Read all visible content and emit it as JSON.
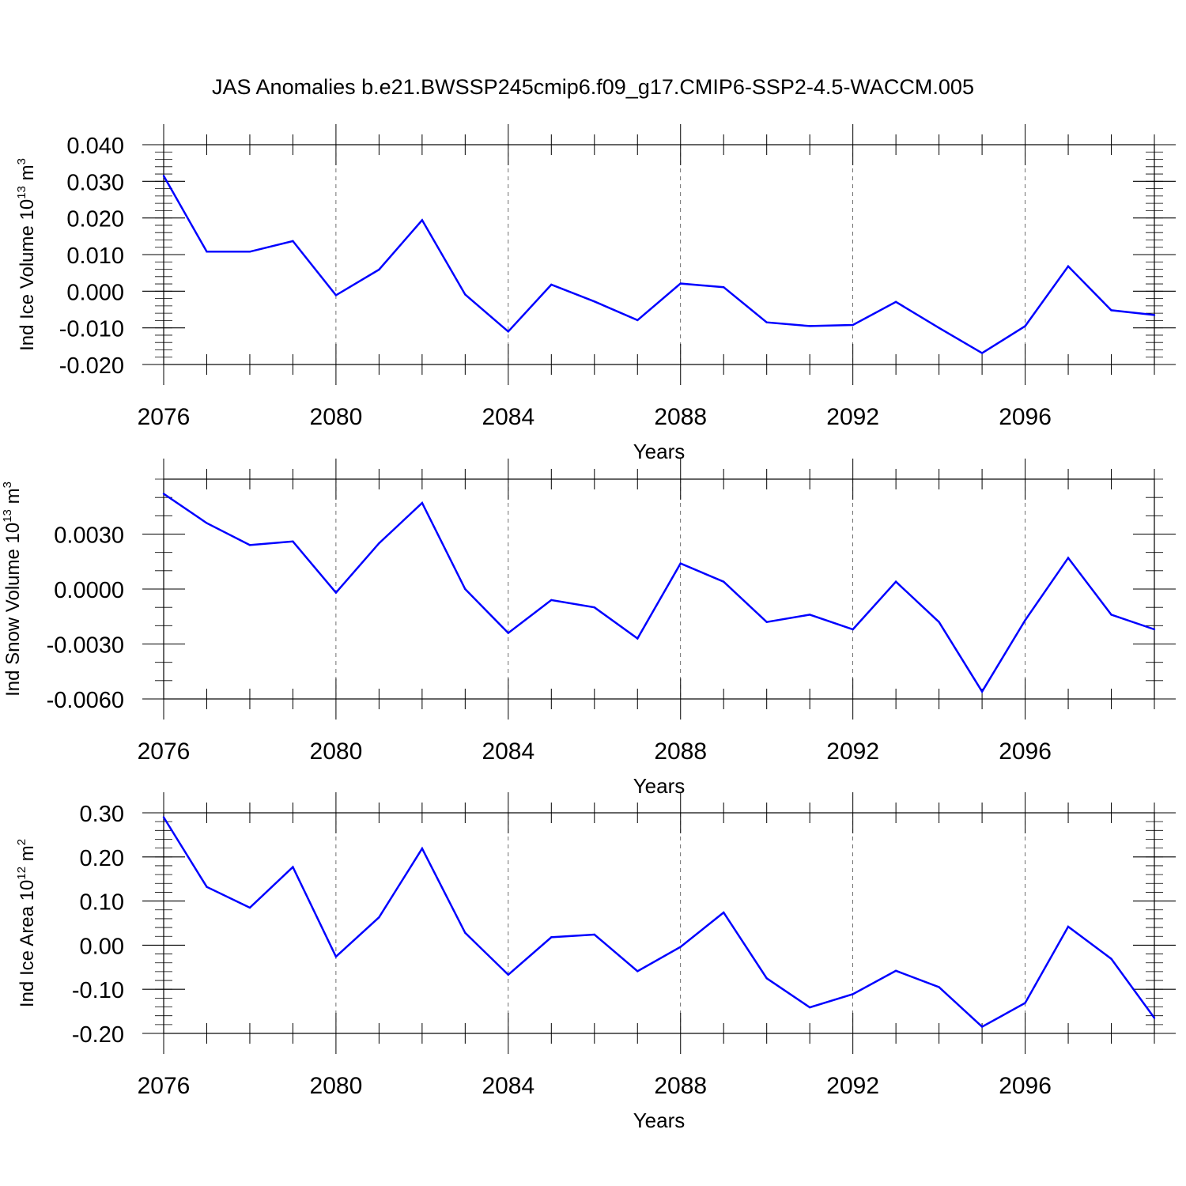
{
  "title": "JAS Anomalies b.e21.BWSSP245cmip6.f09_g17.CMIP6-SSP2-4.5-WACCM.005",
  "line_color": "#0000ff",
  "chart_data": [
    {
      "type": "line",
      "xlabel": "Years",
      "ylabel": {
        "prefix": "Ind Ice Volume 10",
        "exp": "13",
        "unit": " m",
        "unit_exp": "3"
      },
      "x": [
        2076,
        2077,
        2078,
        2079,
        2080,
        2081,
        2082,
        2083,
        2084,
        2085,
        2086,
        2087,
        2088,
        2089,
        2090,
        2091,
        2092,
        2093,
        2094,
        2095,
        2096,
        2097,
        2098,
        2099
      ],
      "xlim": [
        2076,
        2099
      ],
      "ylim": [
        -0.02,
        0.04
      ],
      "xticks": [
        2076,
        2080,
        2084,
        2088,
        2092,
        2096
      ],
      "xtick_labels": [
        "2076",
        "2080",
        "2084",
        "2088",
        "2092",
        "2096"
      ],
      "yticks": [
        -0.02,
        -0.01,
        0.0,
        0.01,
        0.02,
        0.03,
        0.04
      ],
      "ytick_labels": [
        "-0.020",
        "-0.010",
        "0.000",
        "0.010",
        "0.020",
        "0.030",
        "0.040"
      ],
      "yminor_step": 0.002,
      "grid": "x dashed",
      "series": [
        {
          "values": [
            0.0315,
            0.0108,
            0.0108,
            0.0137,
            -0.0011,
            0.0059,
            0.0194,
            -0.0009,
            -0.011,
            0.0018,
            -0.0028,
            -0.0079,
            0.0021,
            0.0011,
            -0.0085,
            -0.0095,
            -0.0092,
            -0.0029,
            -0.01,
            -0.0169,
            -0.0095,
            0.0068,
            -0.0052,
            -0.0065
          ]
        }
      ]
    },
    {
      "type": "line",
      "xlabel": "Years",
      "ylabel": {
        "prefix": "Ind Snow Volume 10",
        "exp": "13",
        "unit": " m",
        "unit_exp": "3"
      },
      "x": [
        2076,
        2077,
        2078,
        2079,
        2080,
        2081,
        2082,
        2083,
        2084,
        2085,
        2086,
        2087,
        2088,
        2089,
        2090,
        2091,
        2092,
        2093,
        2094,
        2095,
        2096,
        2097,
        2098,
        2099
      ],
      "xlim": [
        2076,
        2099
      ],
      "ylim": [
        -0.006,
        0.006
      ],
      "xticks": [
        2076,
        2080,
        2084,
        2088,
        2092,
        2096
      ],
      "xtick_labels": [
        "2076",
        "2080",
        "2084",
        "2088",
        "2092",
        "2096"
      ],
      "yticks": [
        -0.006,
        -0.003,
        0.0,
        0.003
      ],
      "ytick_labels": [
        "-0.0060",
        "-0.0030",
        "0.0000",
        "0.0030"
      ],
      "yminor_step": 0.001,
      "grid": "x dashed",
      "series": [
        {
          "values": [
            0.0052,
            0.0036,
            0.0024,
            0.0026,
            -0.0002,
            0.0025,
            0.0047,
            0.0,
            -0.0024,
            -0.0006,
            -0.001,
            -0.0027,
            0.0014,
            0.0004,
            -0.0018,
            -0.0014,
            -0.0022,
            0.0004,
            -0.0018,
            -0.0056,
            -0.0017,
            0.0017,
            -0.0014,
            -0.0022
          ]
        }
      ]
    },
    {
      "type": "line",
      "xlabel": "Years",
      "ylabel": {
        "prefix": "Ind Ice Area 10",
        "exp": "12",
        "unit": " m",
        "unit_exp": "2"
      },
      "x": [
        2076,
        2077,
        2078,
        2079,
        2080,
        2081,
        2082,
        2083,
        2084,
        2085,
        2086,
        2087,
        2088,
        2089,
        2090,
        2091,
        2092,
        2093,
        2094,
        2095,
        2096,
        2097,
        2098,
        2099
      ],
      "xlim": [
        2076,
        2099
      ],
      "ylim": [
        -0.2,
        0.3
      ],
      "xticks": [
        2076,
        2080,
        2084,
        2088,
        2092,
        2096
      ],
      "xtick_labels": [
        "2076",
        "2080",
        "2084",
        "2088",
        "2092",
        "2096"
      ],
      "yticks": [
        -0.2,
        -0.1,
        0.0,
        0.1,
        0.2,
        0.3
      ],
      "ytick_labels": [
        "-0.20",
        "-0.10",
        "0.00",
        "0.10",
        "0.20",
        "0.30"
      ],
      "yminor_step": 0.02,
      "grid": "x dashed",
      "series": [
        {
          "values": [
            0.29,
            0.132,
            0.085,
            0.177,
            -0.026,
            0.063,
            0.219,
            0.028,
            -0.067,
            0.018,
            0.024,
            -0.059,
            -0.004,
            0.074,
            -0.075,
            -0.141,
            -0.111,
            -0.058,
            -0.095,
            -0.185,
            -0.131,
            0.042,
            -0.031,
            -0.165
          ]
        }
      ]
    }
  ]
}
